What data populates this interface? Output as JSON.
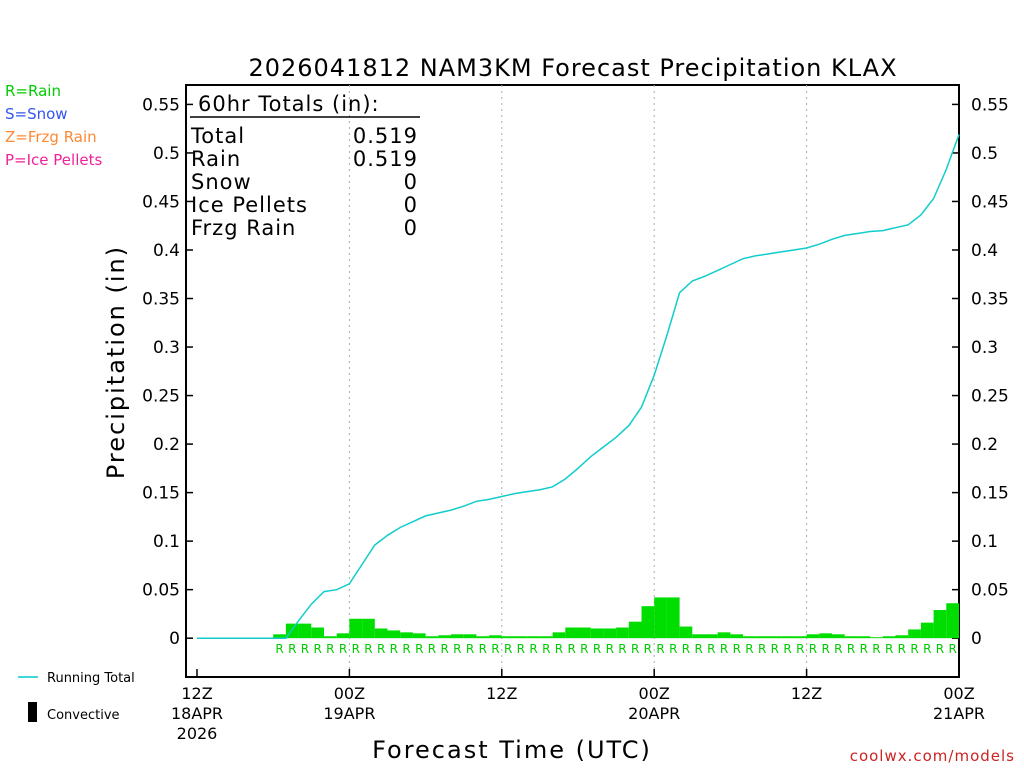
{
  "chart_data": {
    "type": "bar",
    "title": "2026041812 NAM3KM Forecast Precipitation KLAX",
    "ylabel": "Precipitation (in)",
    "xlabel": "Forecast Time (UTC)",
    "ylim": [
      -0.04,
      0.57
    ],
    "xlim_hours": [
      0,
      60
    ],
    "y_ticks": [
      "0",
      "0.05",
      "0.1",
      "0.15",
      "0.2",
      "0.25",
      "0.3",
      "0.35",
      "0.4",
      "0.45",
      "0.5",
      "0.55"
    ],
    "y_tick_values": [
      0,
      0.05,
      0.1,
      0.15,
      0.2,
      0.25,
      0.3,
      0.35,
      0.4,
      0.45,
      0.5,
      0.55
    ],
    "x_ticks": [
      {
        "hour": 0,
        "lines": [
          "12Z",
          "18APR",
          "2026"
        ]
      },
      {
        "hour": 12,
        "lines": [
          "00Z",
          "19APR"
        ]
      },
      {
        "hour": 24,
        "lines": [
          "12Z"
        ]
      },
      {
        "hour": 36,
        "lines": [
          "00Z",
          "20APR"
        ]
      },
      {
        "hour": 48,
        "lines": [
          "12Z"
        ]
      },
      {
        "hour": 60,
        "lines": [
          "00Z",
          "21APR"
        ]
      }
    ],
    "grid_hours": [
      12,
      24,
      36,
      48
    ],
    "totals_box": {
      "header": "60hr Totals (in):",
      "rows": [
        {
          "label": "Total",
          "value": "0.519"
        },
        {
          "label": "Rain",
          "value": "0.519"
        },
        {
          "label": "Snow",
          "value": "0"
        },
        {
          "label": "Ice Pellets",
          "value": "0"
        },
        {
          "label": "Frzg Rain",
          "value": "0"
        }
      ]
    },
    "ptype_legend": [
      {
        "text": "R=Rain",
        "color": "#00cc00"
      },
      {
        "text": "S=Snow",
        "color": "#3355ee"
      },
      {
        "text": "Z=Frzg Rain",
        "color": "#ff8833"
      },
      {
        "text": "P=Ice Pellets",
        "color": "#ee2299"
      }
    ],
    "series_legend": [
      {
        "text": "Running Total",
        "color": "#00cccc",
        "kind": "line"
      },
      {
        "text": "Convective",
        "color": "#000000",
        "kind": "bar"
      }
    ],
    "bar_color": "#00dd00",
    "line_color": "#11cccc",
    "bar_hours": [
      7,
      8,
      9,
      10,
      11,
      12,
      13,
      14,
      15,
      16,
      17,
      18,
      19,
      20,
      21,
      22,
      23,
      24,
      25,
      26,
      27,
      28,
      29,
      30,
      31,
      32,
      33,
      34,
      35,
      36,
      37,
      38,
      39,
      40,
      41,
      42,
      43,
      44,
      45,
      46,
      47,
      48,
      49,
      50,
      51,
      52,
      53,
      54,
      55,
      56,
      57,
      58,
      59,
      60
    ],
    "bar_values": [
      0.004,
      0.015,
      0.015,
      0.011,
      0.002,
      0.005,
      0.02,
      0.02,
      0.01,
      0.008,
      0.006,
      0.005,
      0.002,
      0.003,
      0.004,
      0.004,
      0.002,
      0.003,
      0.002,
      0.002,
      0.002,
      0.002,
      0.006,
      0.011,
      0.011,
      0.01,
      0.01,
      0.011,
      0.017,
      0.033,
      0.042,
      0.042,
      0.012,
      0.004,
      0.004,
      0.006,
      0.004,
      0.002,
      0.002,
      0.002,
      0.002,
      0.002,
      0.004,
      0.005,
      0.004,
      0.002,
      0.002,
      0.001,
      0.002,
      0.003,
      0.009,
      0.016,
      0.029,
      0.036
    ],
    "ptype_marks": [
      "R",
      "R",
      "R",
      "R",
      "R",
      "R",
      "R",
      "R",
      "R",
      "R",
      "R",
      "R",
      "R",
      "R",
      "R",
      "R",
      "R",
      "R",
      "R",
      "R",
      "R",
      "R",
      "R",
      "R",
      "R",
      "R",
      "R",
      "R",
      "R",
      "R",
      "R",
      "R",
      "R",
      "R",
      "R",
      "R",
      "R",
      "R",
      "R",
      "R",
      "R",
      "R",
      "R",
      "R",
      "R",
      "R",
      "R",
      "R",
      "R",
      "R",
      "R",
      "R",
      "R",
      "R"
    ],
    "running_total": {
      "hours": [
        0,
        7,
        8,
        9,
        10,
        11,
        12,
        13,
        14,
        15,
        16,
        17,
        18,
        19,
        20,
        21,
        22,
        23,
        24,
        25,
        26,
        27,
        28,
        29,
        30,
        31,
        32,
        33,
        34,
        35,
        36,
        37,
        38,
        39,
        40,
        41,
        42,
        43,
        44,
        45,
        46,
        47,
        48,
        49,
        50,
        51,
        52,
        53,
        54,
        55,
        56,
        57,
        58,
        59,
        60
      ],
      "values": [
        0,
        0,
        0.018,
        0.035,
        0.048,
        0.05,
        0.056,
        0.076,
        0.096,
        0.106,
        0.114,
        0.12,
        0.126,
        0.129,
        0.132,
        0.136,
        0.141,
        0.143,
        0.146,
        0.149,
        0.151,
        0.153,
        0.156,
        0.164,
        0.175,
        0.187,
        0.197,
        0.207,
        0.219,
        0.238,
        0.271,
        0.312,
        0.356,
        0.368,
        0.373,
        0.379,
        0.385,
        0.391,
        0.394,
        0.396,
        0.398,
        0.4,
        0.402,
        0.406,
        0.411,
        0.415,
        0.417,
        0.419,
        0.42,
        0.423,
        0.426,
        0.436,
        0.453,
        0.483,
        0.519
      ]
    }
  },
  "footer": {
    "credit": "coolwx.com/models"
  }
}
